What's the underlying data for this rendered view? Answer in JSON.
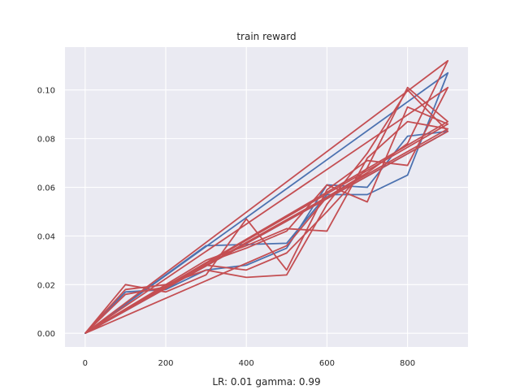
{
  "chart_data": {
    "type": "line",
    "title": "train reward",
    "xlabel": "LR: 0.01 gamma: 0.99",
    "ylabel": "",
    "xlim": [
      -50,
      950
    ],
    "ylim": [
      -0.0056,
      0.1176
    ],
    "xticks": [
      0,
      200,
      400,
      600,
      800
    ],
    "xtick_labels": [
      "0",
      "200",
      "400",
      "600",
      "800"
    ],
    "yticks": [
      0.0,
      0.02,
      0.04,
      0.06,
      0.08,
      0.1
    ],
    "ytick_labels": [
      "0.00",
      "0.02",
      "0.04",
      "0.06",
      "0.08",
      "0.10"
    ],
    "grid": true,
    "legend": false,
    "background": "#eaeaf2",
    "series": [
      {
        "color": "#4c72b0",
        "points": [
          [
            0,
            0
          ],
          [
            100,
            0.017
          ],
          [
            200,
            0.018
          ],
          [
            300,
            0.026
          ],
          [
            400,
            0.028
          ],
          [
            500,
            0.035
          ],
          [
            600,
            0.061
          ],
          [
            700,
            0.06
          ],
          [
            800,
            0.081
          ],
          [
            900,
            0.083
          ],
          [
            0,
            0
          ],
          [
            300,
            0.036
          ],
          [
            500,
            0.037
          ],
          [
            600,
            0.057
          ],
          [
            700,
            0.057
          ],
          [
            800,
            0.065
          ],
          [
            900,
            0.107
          ],
          [
            0,
            0
          ]
        ]
      },
      {
        "color": "#c44e52",
        "points": [
          [
            0,
            0
          ],
          [
            100,
            0.02
          ],
          [
            200,
            0.017
          ],
          [
            300,
            0.024
          ],
          [
            400,
            0.047
          ],
          [
            500,
            0.026
          ],
          [
            600,
            0.059
          ],
          [
            700,
            0.071
          ],
          [
            800,
            0.069
          ],
          [
            900,
            0.101
          ],
          [
            0,
            0
          ]
        ]
      },
      {
        "color": "#c44e52",
        "points": [
          [
            0,
            0
          ],
          [
            100,
            0.018
          ],
          [
            200,
            0.02
          ],
          [
            300,
            0.026
          ],
          [
            400,
            0.023
          ],
          [
            500,
            0.024
          ],
          [
            600,
            0.053
          ],
          [
            700,
            0.074
          ],
          [
            800,
            0.1
          ],
          [
            900,
            0.083
          ],
          [
            0,
            0
          ]
        ]
      },
      {
        "color": "#c44e52",
        "points": [
          [
            0,
            0
          ],
          [
            100,
            0.016
          ],
          [
            200,
            0.019
          ],
          [
            300,
            0.029
          ],
          [
            400,
            0.035
          ],
          [
            500,
            0.042
          ],
          [
            600,
            0.061
          ],
          [
            700,
            0.054
          ],
          [
            800,
            0.093
          ],
          [
            900,
            0.086
          ],
          [
            0,
            0
          ]
        ]
      },
      {
        "color": "#c44e52",
        "points": [
          [
            0,
            0
          ],
          [
            300,
            0.03
          ],
          [
            400,
            0.036
          ],
          [
            500,
            0.043
          ],
          [
            600,
            0.042
          ],
          [
            700,
            0.072
          ],
          [
            800,
            0.087
          ],
          [
            900,
            0.084
          ],
          [
            0,
            0
          ]
        ]
      },
      {
        "color": "#c44e52",
        "points": [
          [
            0,
            0
          ],
          [
            300,
            0.028
          ],
          [
            400,
            0.026
          ],
          [
            500,
            0.033
          ],
          [
            600,
            0.05
          ],
          [
            700,
            0.068
          ],
          [
            800,
            0.101
          ],
          [
            900,
            0.087
          ],
          [
            0,
            0
          ]
        ]
      },
      {
        "color": "#c44e52",
        "points": [
          [
            0,
            0
          ],
          [
            500,
            0.036
          ],
          [
            600,
            0.056
          ],
          [
            700,
            0.066
          ],
          [
            800,
            0.078
          ],
          [
            900,
            0.112
          ],
          [
            0,
            0
          ]
        ]
      }
    ]
  }
}
